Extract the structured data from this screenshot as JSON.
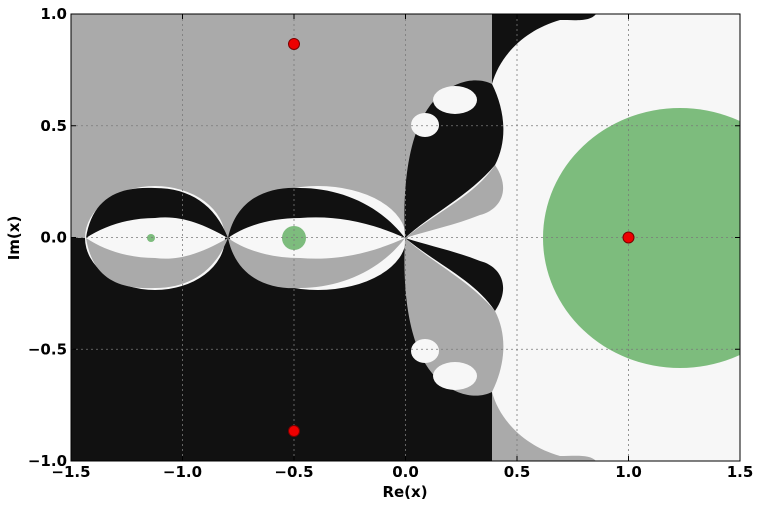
{
  "chart_data": {
    "type": "heatmap",
    "title": "",
    "xlabel": "Re(x)",
    "ylabel": "Im(x)",
    "xlim": [
      -1.5,
      1.5
    ],
    "ylim": [
      -1.0,
      1.0
    ],
    "grid": true,
    "x_ticks": [
      -1.5,
      -1.0,
      -0.5,
      0.0,
      0.5,
      1.0,
      1.5
    ],
    "x_tick_labels": [
      "−1.5",
      "−1.0",
      "−0.5",
      "0.0",
      "0.5",
      "1.0",
      "1.5"
    ],
    "y_ticks": [
      -1.0,
      -0.5,
      0.0,
      0.5,
      1.0
    ],
    "y_tick_labels": [
      "−1.0",
      "−0.5",
      "0.0",
      "0.5",
      "1.0"
    ],
    "roots": [
      {
        "x": 1.0,
        "y": 0.0
      },
      {
        "x": -0.5,
        "y": 0.866
      },
      {
        "x": -0.5,
        "y": -0.866
      }
    ],
    "colors": {
      "basin_root_real": "#f7f7f7",
      "basin_root_upper": "#aaaaaa",
      "basin_root_lower": "#111111",
      "fast_convergence": "#7dbc7d",
      "root_marker": "#ee0000",
      "root_marker_edge": "#7a0000"
    }
  }
}
